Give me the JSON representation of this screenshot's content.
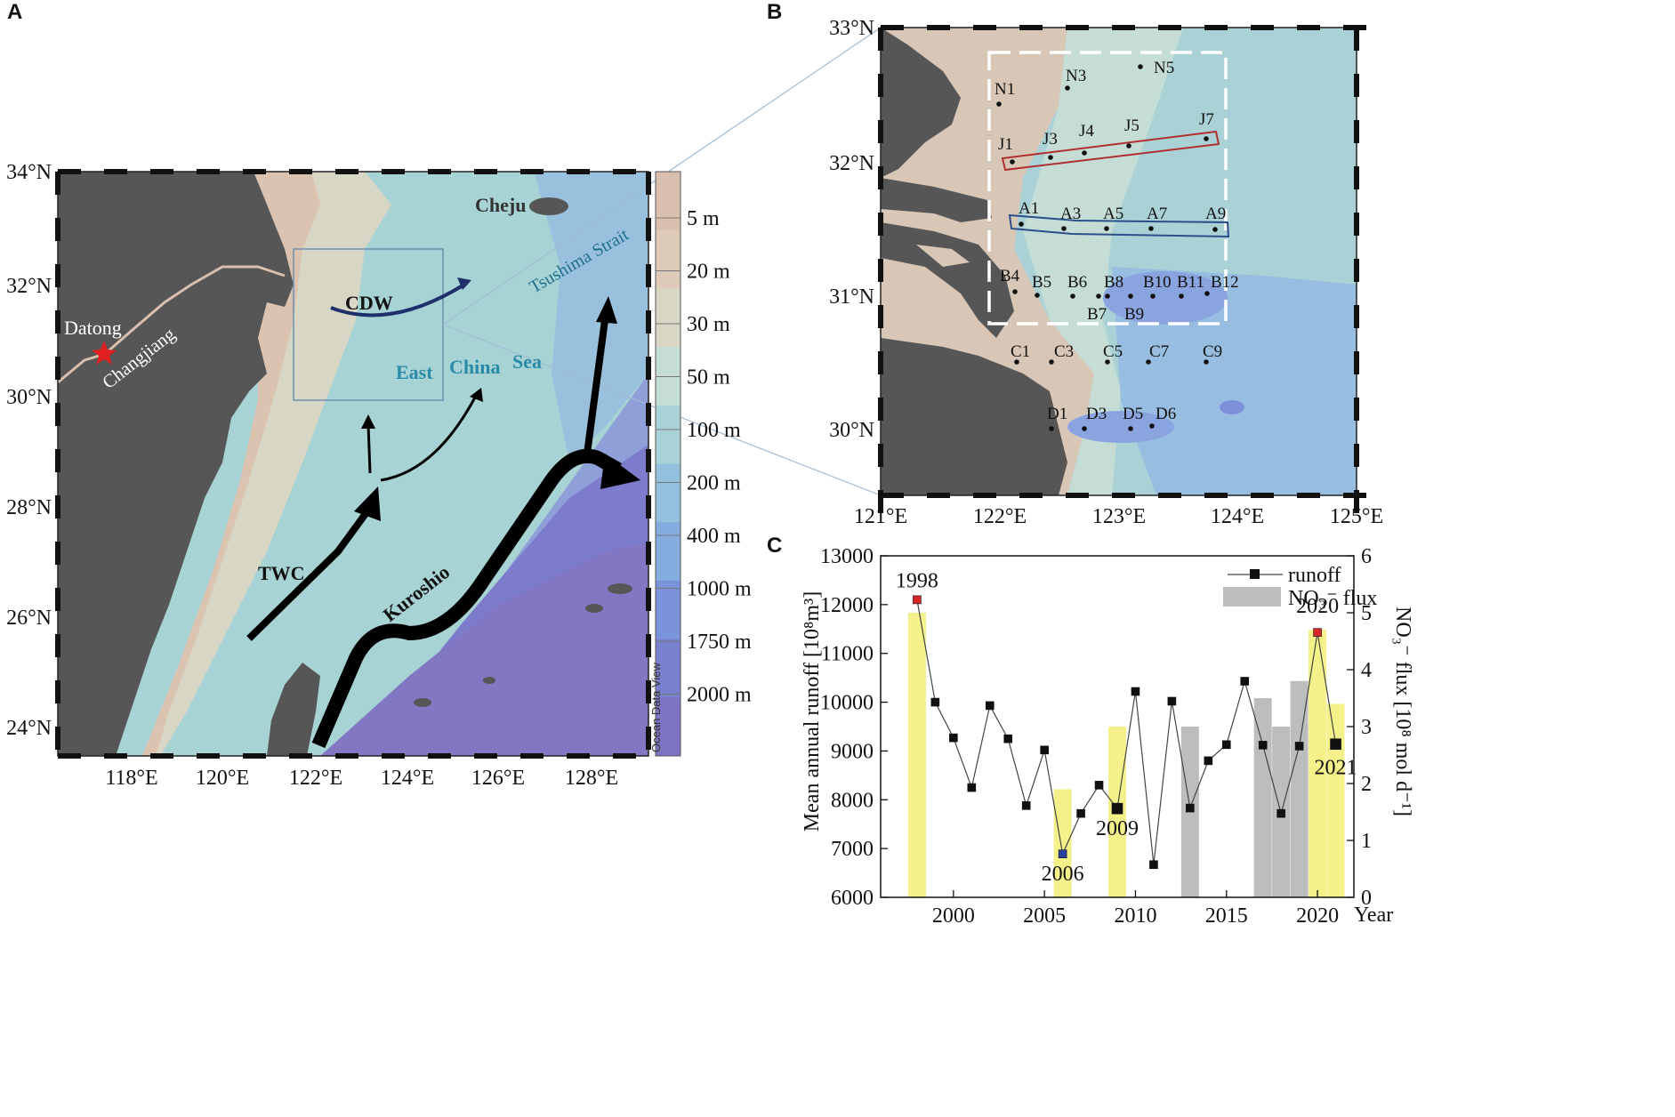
{
  "panels": {
    "a": "A",
    "b": "B",
    "c": "C"
  },
  "map_a": {
    "lat_labels": [
      "34°N",
      "32°N",
      "30°N",
      "28°N",
      "26°N",
      "24°N"
    ],
    "lon_labels": [
      "118°E",
      "120°E",
      "122°E",
      "124°E",
      "126°E",
      "128°E"
    ],
    "places": {
      "datong": "Datong",
      "changjiang": "Changjiang",
      "cheju": "Cheju",
      "tsushima": "Tsushima Strait",
      "east": "East",
      "china": "China",
      "sea": "Sea"
    },
    "currents": {
      "cdw": "CDW",
      "twc": "TWC",
      "kuroshio": "Kuroshio"
    },
    "depth_legend": [
      "5 m",
      "20 m",
      "30 m",
      "50 m",
      "100 m",
      "200 m",
      "400 m",
      "1000 m",
      "1750 m",
      "2000 m"
    ],
    "depth_colors": [
      "#d9bfae",
      "#ddcab8",
      "#d8d6c4",
      "#c5ddd4",
      "#aad2d6",
      "#93c0dc",
      "#86addf",
      "#7b93d8",
      "#7a82cf",
      "#7d74c4"
    ],
    "watermark": "Ocean Data View"
  },
  "map_b": {
    "lat_labels": [
      "33°N",
      "32°N",
      "31°N",
      "30°N"
    ],
    "lon_labels": [
      "121°E",
      "122°E",
      "123°E",
      "124°E",
      "125°E"
    ],
    "stations": [
      "N1",
      "N3",
      "N5",
      "J1",
      "J3",
      "J4",
      "J5",
      "J7",
      "A1",
      "A3",
      "A5",
      "A7",
      "A9",
      "B4",
      "B5",
      "B6",
      "B8",
      "B10",
      "B11",
      "B12",
      "B7",
      "B9",
      "C1",
      "C3",
      "C5",
      "C7",
      "C9",
      "D1",
      "D3",
      "D5",
      "D6"
    ]
  },
  "chart_data": {
    "type": "bar+line",
    "x_label": "Year",
    "y_left_label": "Mean annual runoff [10⁸m³]",
    "y_right_label": "NO₃⁻ flux [10⁸ mol d⁻¹]",
    "y_left_ticks": [
      "6000",
      "7000",
      "8000",
      "9000",
      "10000",
      "11000",
      "12000",
      "13000"
    ],
    "y_right_ticks": [
      "0",
      "1",
      "2",
      "3",
      "4",
      "5",
      "6"
    ],
    "x_ticks": [
      "2000",
      "2005",
      "2010",
      "2015",
      "2020"
    ],
    "y_left_range": [
      6000,
      13000
    ],
    "y_right_range": [
      0,
      6
    ],
    "x_range": [
      1996,
      2022
    ],
    "legend": {
      "runoff": "runoff",
      "flux": "NO₃⁻ flux"
    },
    "runoff": {
      "name": "runoff",
      "x": [
        1998,
        1999,
        2000,
        2001,
        2002,
        2003,
        2004,
        2005,
        2006,
        2007,
        2008,
        2009,
        2010,
        2011,
        2012,
        2013,
        2014,
        2015,
        2016,
        2017,
        2018,
        2019,
        2020,
        2021
      ],
      "y": [
        12100,
        10000,
        9270,
        8250,
        9930,
        9250,
        7880,
        9020,
        6890,
        7720,
        8300,
        7820,
        10220,
        6670,
        10020,
        7830,
        8800,
        9130,
        10430,
        9120,
        7720,
        9100,
        11430,
        9140
      ]
    },
    "flux": {
      "name": "NO₃⁻ flux",
      "x": [
        1998,
        2006,
        2009,
        2013,
        2017,
        2018,
        2019,
        2020,
        2021
      ],
      "y": [
        5.0,
        1.9,
        3.0,
        3.0,
        3.5,
        3.0,
        3.8,
        4.7,
        3.4
      ],
      "colors": [
        "#f4f08a",
        "#f4f08a",
        "#f4f08a",
        "#bdbdbd",
        "#bdbdbd",
        "#bdbdbd",
        "#bdbdbd",
        "#f4f08a",
        "#f4f08a"
      ]
    },
    "annotations": [
      {
        "text": "1998",
        "x": 1998,
        "y": 12100
      },
      {
        "text": "2006",
        "x": 2006,
        "y": 6890
      },
      {
        "text": "2009",
        "x": 2009,
        "y": 7820
      },
      {
        "text": "2020",
        "x": 2020,
        "y": 11430
      },
      {
        "text": "2021",
        "x": 2021,
        "y": 9140
      }
    ],
    "highlight_colors": {
      "red": "#d62728",
      "blue": "#2b3f9e"
    }
  }
}
